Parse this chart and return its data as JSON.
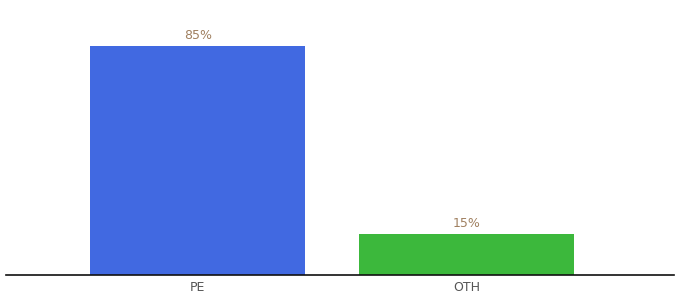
{
  "categories": [
    "PE",
    "OTH"
  ],
  "values": [
    85,
    15
  ],
  "bar_colors": [
    "#4169e1",
    "#3cb83c"
  ],
  "label_texts": [
    "85%",
    "15%"
  ],
  "label_color": "#a08060",
  "background_color": "#ffffff",
  "ylim": [
    0,
    100
  ],
  "bar_width": 0.28,
  "figsize": [
    6.8,
    3.0
  ],
  "dpi": 100,
  "tick_color": "#555555",
  "tick_fontsize": 9,
  "label_fontsize": 9,
  "spine_color": "#111111",
  "x_positions": [
    0.3,
    0.65
  ],
  "xlim": [
    0.05,
    0.92
  ]
}
